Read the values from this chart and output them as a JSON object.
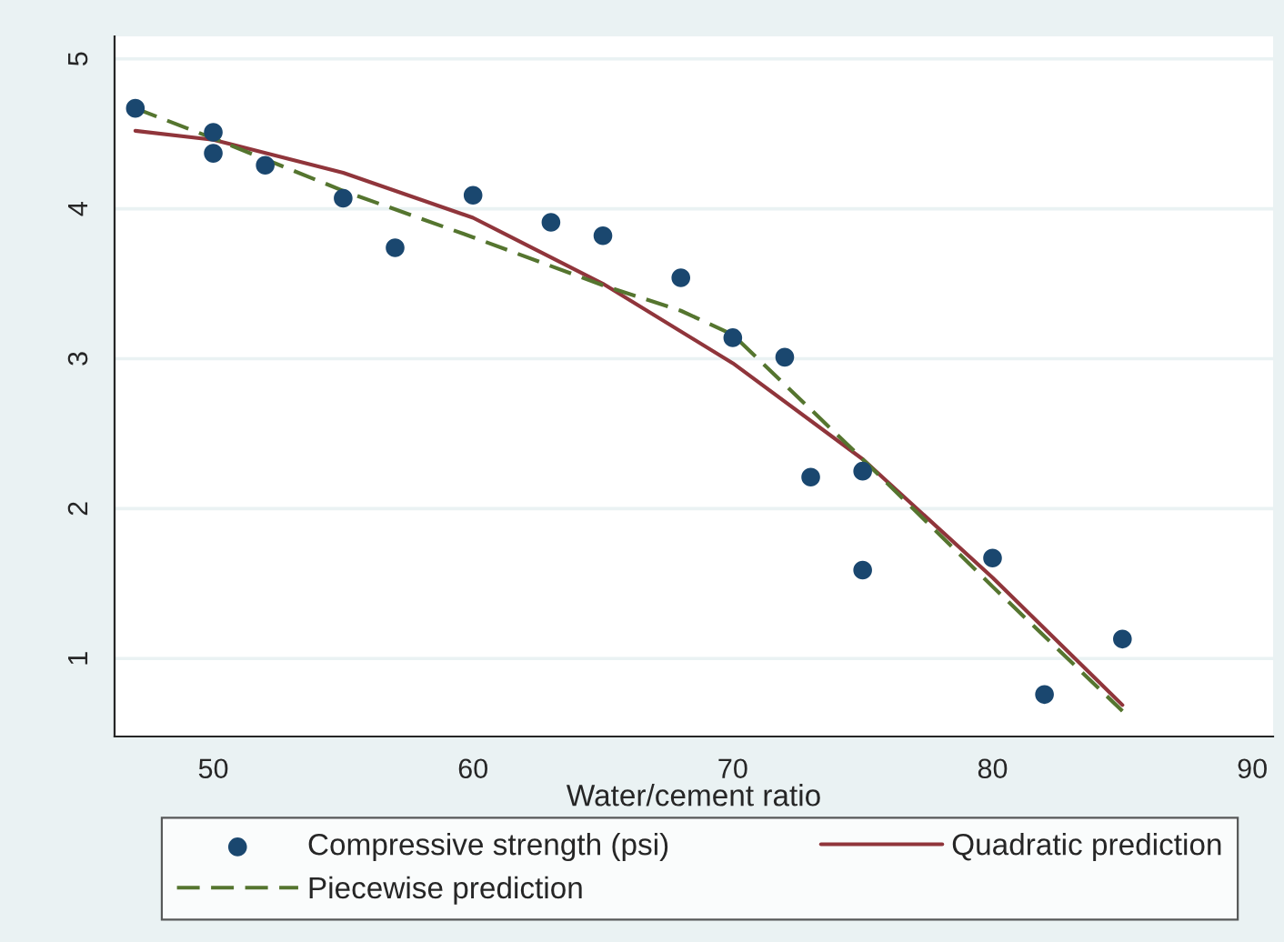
{
  "chart_data": {
    "type": "line",
    "xlabel": "Water/cement ratio",
    "series": [
      {
        "name": "Compressive strength (psi)",
        "type": "scatter",
        "color": "#1a476f",
        "marker": "circle",
        "x": [
          47,
          50,
          50,
          52,
          55,
          57,
          60,
          63,
          65,
          68,
          70,
          72,
          73,
          75,
          75,
          80,
          82,
          85
        ],
        "values": [
          4.67,
          4.51,
          4.37,
          4.29,
          4.07,
          3.74,
          4.09,
          3.91,
          3.82,
          3.54,
          3.14,
          3.01,
          2.21,
          2.25,
          1.59,
          1.67,
          0.76,
          1.13
        ]
      },
      {
        "name": "Quadratic prediction",
        "color": "#90353b",
        "line_style": "solid",
        "x": [
          47,
          50,
          55,
          60,
          65,
          70,
          75,
          80,
          85
        ],
        "values": [
          4.52,
          4.46,
          4.24,
          3.94,
          3.5,
          2.97,
          2.33,
          1.54,
          0.69
        ]
      },
      {
        "name": "Piecewise prediction",
        "color": "#55752f",
        "line_style": "dashed",
        "x": [
          47,
          50,
          55,
          60,
          65,
          68,
          70,
          75,
          80,
          85
        ],
        "values": [
          4.67,
          4.47,
          4.12,
          3.81,
          3.49,
          3.32,
          3.16,
          2.33,
          1.48,
          0.65
        ]
      }
    ],
    "xlim": [
      46.2,
      90.8
    ],
    "xticks": [
      50,
      60,
      70,
      80,
      90
    ],
    "ylim": [
      0.48,
      5.15
    ],
    "yticks": [
      1,
      2,
      3,
      4,
      5
    ],
    "grid": "y",
    "legend": "bottom"
  }
}
